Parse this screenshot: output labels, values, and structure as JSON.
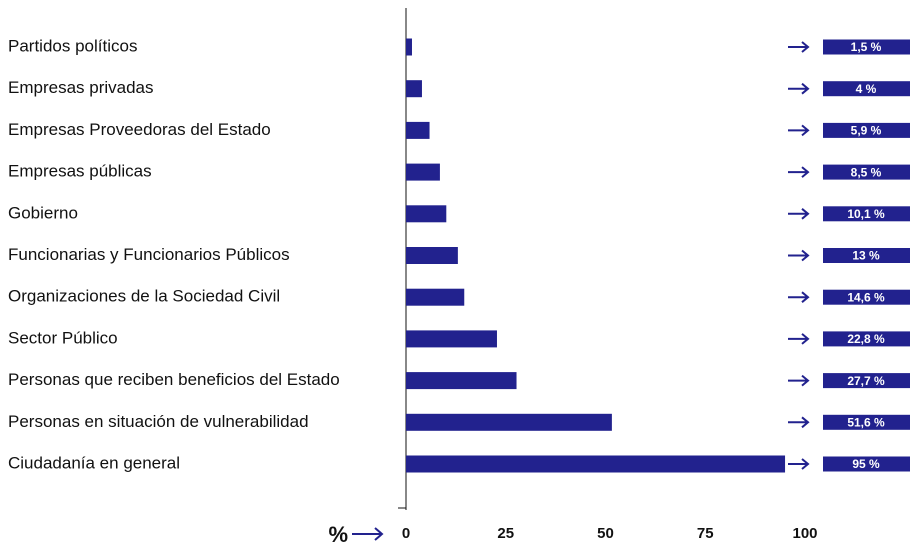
{
  "chart_data": {
    "type": "barh",
    "categories": [
      "Partidos políticos",
      "Empresas privadas",
      "Empresas Proveedoras del Estado",
      "Empresas públicas",
      "Gobierno",
      "Funcionarias y Funcionarios Públicos",
      "Organizaciones de la Sociedad Civil",
      "Sector Público",
      "Personas que reciben beneficios del Estado",
      "Personas en situación de vulnerabilidad",
      "Ciudadanía en general"
    ],
    "values": [
      1.5,
      4,
      5.9,
      8.5,
      10.1,
      13,
      14.6,
      22.8,
      27.7,
      51.6,
      95
    ],
    "value_labels": [
      "1,5 %",
      "4 %",
      "5,9 %",
      "8,5 %",
      "10,1 %",
      "13 %",
      "14,6 %",
      "22,8 %",
      "27,7 %",
      "51,6 %",
      "95 %"
    ],
    "color": "#22228e",
    "xlabel": "%",
    "xlim": [
      0,
      100
    ],
    "xticks": [
      0,
      25,
      50,
      75,
      100
    ]
  }
}
